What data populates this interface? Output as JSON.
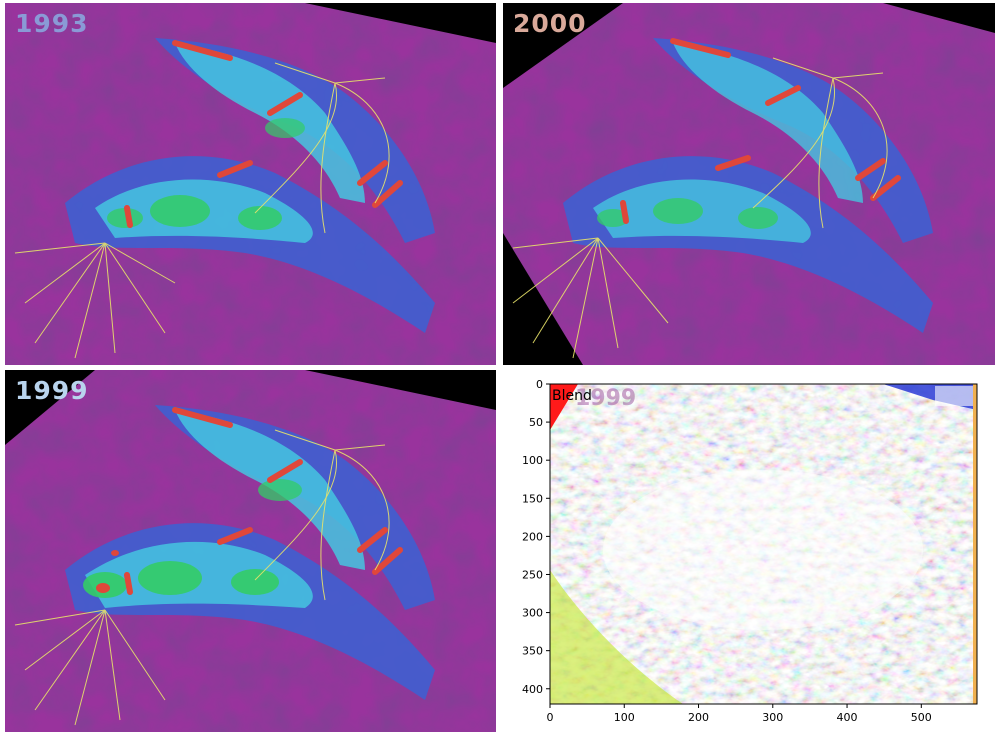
{
  "panels": [
    {
      "year_label": "1993",
      "label_color": "#8a9ad6"
    },
    {
      "year_label": "2000",
      "label_color": "#d9a99a"
    },
    {
      "year_label": "1999",
      "label_color": "#b9d4ee"
    }
  ],
  "blend_plot": {
    "title": "Blend",
    "ghost_label": "1999",
    "xticks": [
      "0",
      "100",
      "200",
      "300",
      "400",
      "500"
    ],
    "yticks": [
      "0",
      "50",
      "100",
      "150",
      "200",
      "250",
      "300",
      "350",
      "400"
    ],
    "xlim": [
      0,
      575
    ],
    "ylim": [
      420,
      0
    ]
  },
  "colors": {
    "background": "#3a1550",
    "magenta": "#b13bb0",
    "blue": "#3f5fd0",
    "cyan": "#45c6e0",
    "green": "#33cc66",
    "red_stroke": "#e0473a",
    "well_path": "#e8e36a"
  }
}
